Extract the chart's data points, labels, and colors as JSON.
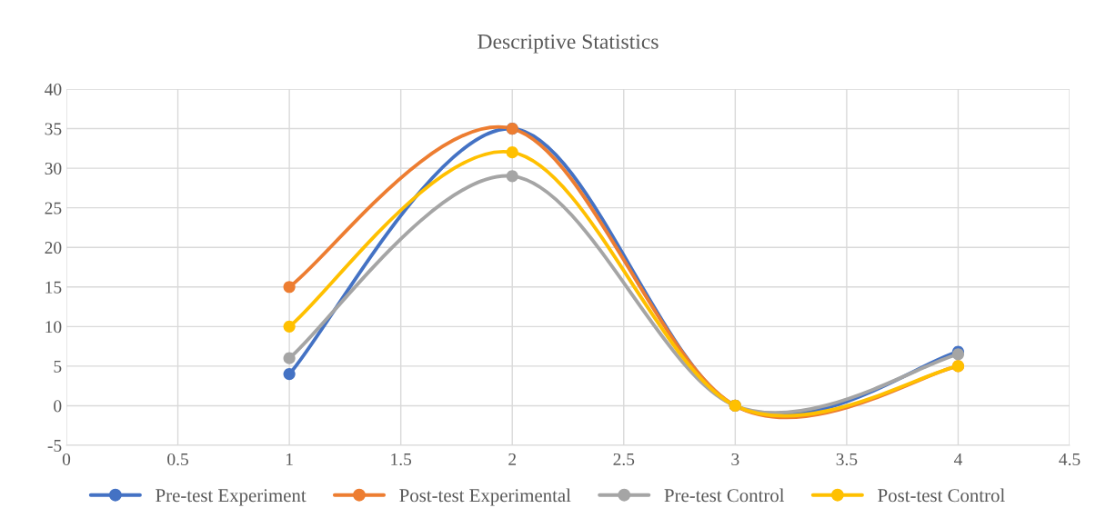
{
  "chart_data": {
    "type": "line",
    "title": "Descriptive Statistics",
    "x": [
      1,
      2,
      3,
      4
    ],
    "series": [
      {
        "name": "Pre-test Experiment",
        "color": "#4472c4",
        "values": [
          4,
          35,
          0,
          6.8
        ]
      },
      {
        "name": "Post-test Experimental",
        "color": "#ed7d31",
        "values": [
          15,
          35,
          0,
          5
        ]
      },
      {
        "name": "Pre-test Control",
        "color": "#a5a5a5",
        "values": [
          6,
          29,
          0,
          6.5
        ]
      },
      {
        "name": "Post-test Control",
        "color": "#ffc000",
        "values": [
          10,
          32,
          0,
          5
        ]
      }
    ],
    "xlim": [
      0,
      4.5
    ],
    "xticks": [
      0,
      0.5,
      1,
      1.5,
      2,
      2.5,
      3,
      3.5,
      4,
      4.5
    ],
    "ylim": [
      -5,
      40
    ],
    "yticks": [
      -5,
      0,
      5,
      10,
      15,
      20,
      25,
      30,
      35,
      40
    ],
    "grid": true,
    "legend": "bottom",
    "marker": "circle",
    "line_style": "solid"
  }
}
